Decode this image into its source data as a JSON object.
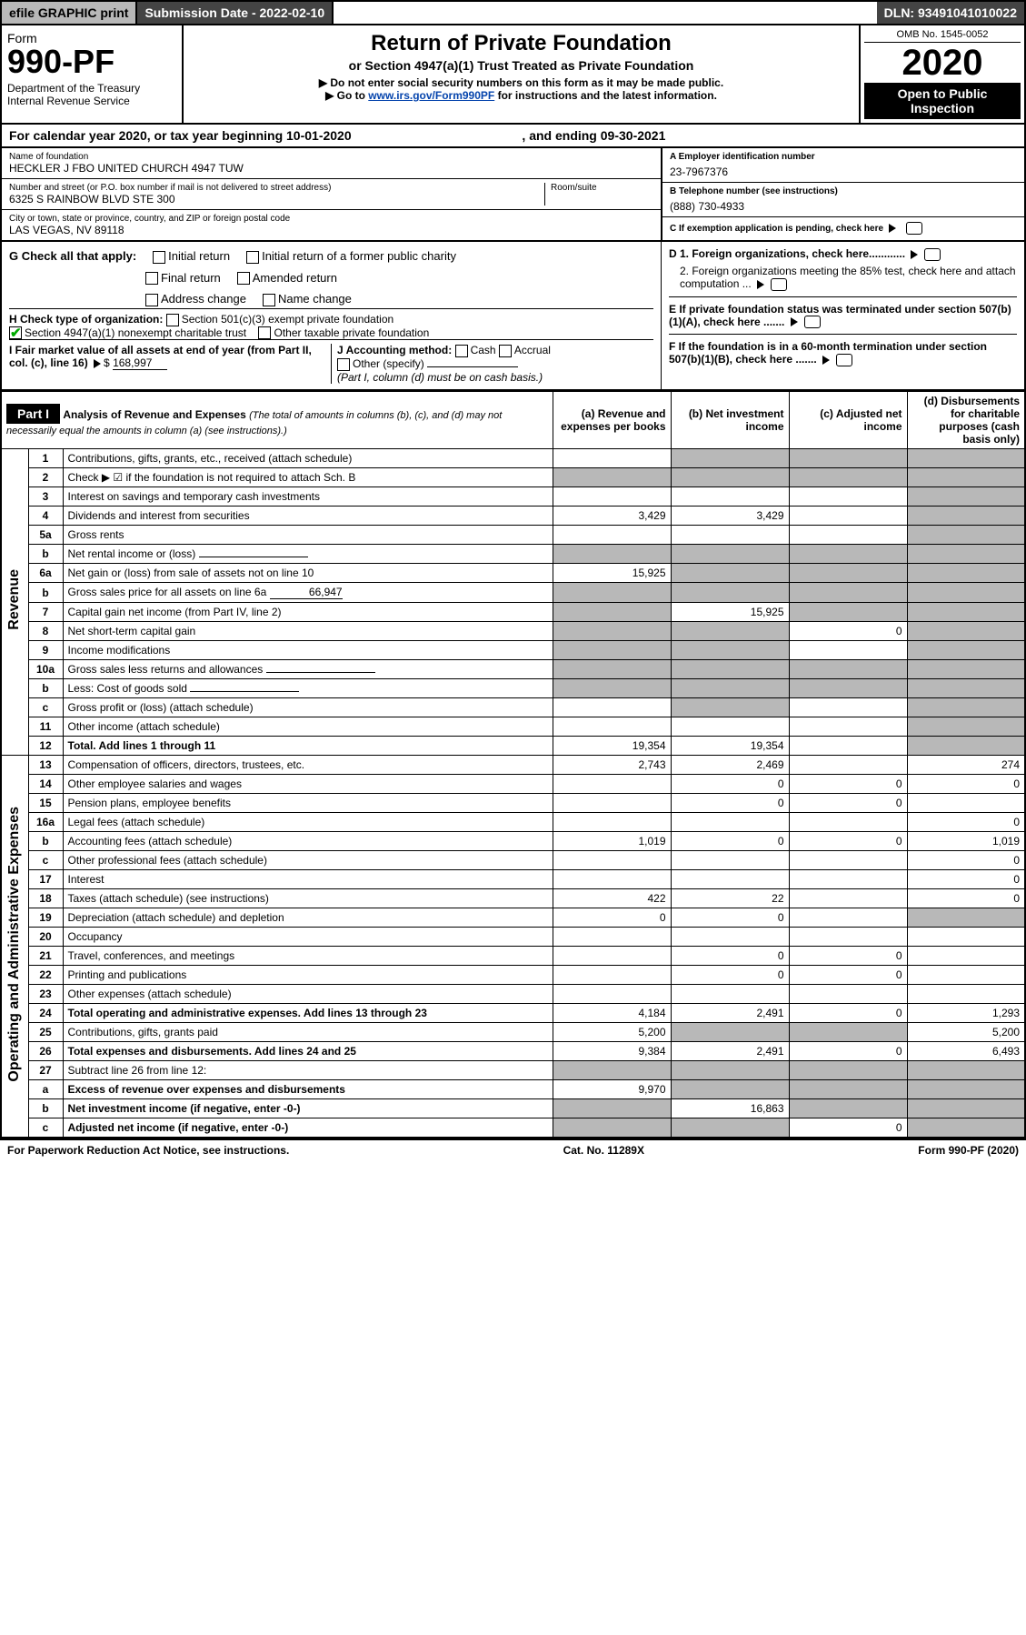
{
  "topbar": {
    "efile": "efile GRAPHIC print",
    "subdate_label": "Submission Date - ",
    "subdate_val": "2022-02-10",
    "dln_label": "DLN: ",
    "dln_val": "93491041010022"
  },
  "header": {
    "form_word": "Form",
    "form_no": "990-PF",
    "dept1": "Department of the Treasury",
    "dept2": "Internal Revenue Service",
    "title": "Return of Private Foundation",
    "subtitle": "or Section 4947(a)(1) Trust Treated as Private Foundation",
    "note1": "▶ Do not enter social security numbers on this form as it may be made public.",
    "note2_pre": "▶ Go to ",
    "note2_link": "www.irs.gov/Form990PF",
    "note2_post": " for instructions and the latest information.",
    "omb": "OMB No. 1545-0052",
    "year": "2020",
    "open": "Open to Public Inspection"
  },
  "cal": {
    "text_pre": "For calendar year 2020, or tax year beginning ",
    "begin": "10-01-2020",
    "text_mid": " , and ending ",
    "end": "09-30-2021"
  },
  "info": {
    "name_lbl": "Name of foundation",
    "name_val": "HECKLER J FBO UNITED CHURCH 4947 TUW",
    "addr_lbl": "Number and street (or P.O. box number if mail is not delivered to street address)",
    "addr_val": "6325 S RAINBOW BLVD STE 300",
    "room_lbl": "Room/suite",
    "city_lbl": "City or town, state or province, country, and ZIP or foreign postal code",
    "city_val": "LAS VEGAS, NV  89118",
    "a_lbl": "A Employer identification number",
    "a_val": "23-7967376",
    "b_lbl": "B Telephone number (see instructions)",
    "b_val": "(888) 730-4933",
    "c_lbl": "C If exemption application is pending, check here",
    "d1_lbl": "D 1. Foreign organizations, check here............",
    "d2_lbl": "2. Foreign organizations meeting the 85% test, check here and attach computation ...",
    "e_lbl": "E  If private foundation status was terminated under section 507(b)(1)(A), check here .......",
    "f_lbl": "F  If the foundation is in a 60-month termination under section 507(b)(1)(B), check here ......."
  },
  "g": {
    "label": "G Check all that apply:",
    "opts": [
      "Initial return",
      "Final return",
      "Address change",
      "Initial return of a former public charity",
      "Amended return",
      "Name change"
    ]
  },
  "h": {
    "label": "H Check type of organization:",
    "opt1": "Section 501(c)(3) exempt private foundation",
    "opt2": "Section 4947(a)(1) nonexempt charitable trust",
    "opt3": "Other taxable private foundation"
  },
  "i": {
    "label": "I Fair market value of all assets at end of year (from Part II, col. (c), line 16)",
    "val": "168,997"
  },
  "j": {
    "label": "J Accounting method:",
    "cash": "Cash",
    "accrual": "Accrual",
    "other": "Other (specify)",
    "note": "(Part I, column (d) must be on cash basis.)"
  },
  "part1": {
    "hdr": "Part I",
    "title": "Analysis of Revenue and Expenses",
    "title_note": "(The total of amounts in columns (b), (c), and (d) may not necessarily equal the amounts in column (a) (see instructions).)",
    "col_a": "(a)  Revenue and expenses per books",
    "col_b": "(b)  Net investment income",
    "col_c": "(c)  Adjusted net income",
    "col_d": "(d)  Disbursements for charitable purposes (cash basis only)"
  },
  "side_labels": {
    "revenue": "Revenue",
    "expenses": "Operating and Administrative Expenses"
  },
  "lines": [
    {
      "no": "1",
      "text": "Contributions, gifts, grants, etc., received (attach schedule)",
      "a": "",
      "b": "",
      "c": "",
      "d": "",
      "shade": [
        "b",
        "c",
        "d"
      ]
    },
    {
      "no": "2",
      "text": "Check ▶ ☑ if the foundation is not required to attach Sch. B",
      "a": "",
      "b": "",
      "c": "",
      "d": "",
      "shade": [
        "a",
        "b",
        "c",
        "d"
      ]
    },
    {
      "no": "3",
      "text": "Interest on savings and temporary cash investments",
      "a": "",
      "b": "",
      "c": "",
      "d": "",
      "shade": [
        "d"
      ]
    },
    {
      "no": "4",
      "text": "Dividends and interest from securities",
      "a": "3,429",
      "b": "3,429",
      "c": "",
      "d": "",
      "shade": [
        "d"
      ]
    },
    {
      "no": "5a",
      "text": "Gross rents",
      "a": "",
      "b": "",
      "c": "",
      "d": "",
      "shade": [
        "d"
      ]
    },
    {
      "no": "b",
      "text": "Net rental income or (loss)",
      "a": "",
      "b": "",
      "c": "",
      "d": "",
      "shade": [
        "a",
        "b",
        "c",
        "d"
      ],
      "inline": true
    },
    {
      "no": "6a",
      "text": "Net gain or (loss) from sale of assets not on line 10",
      "a": "15,925",
      "b": "",
      "c": "",
      "d": "",
      "shade": [
        "b",
        "c",
        "d"
      ]
    },
    {
      "no": "b",
      "text": "Gross sales price for all assets on line 6a",
      "inline_val": "66,947",
      "a": "",
      "b": "",
      "c": "",
      "d": "",
      "shade": [
        "a",
        "b",
        "c",
        "d"
      ]
    },
    {
      "no": "7",
      "text": "Capital gain net income (from Part IV, line 2)",
      "a": "",
      "b": "15,925",
      "c": "",
      "d": "",
      "shade": [
        "a",
        "c",
        "d"
      ]
    },
    {
      "no": "8",
      "text": "Net short-term capital gain",
      "a": "",
      "b": "",
      "c": "0",
      "d": "",
      "shade": [
        "a",
        "b",
        "d"
      ]
    },
    {
      "no": "9",
      "text": "Income modifications",
      "a": "",
      "b": "",
      "c": "",
      "d": "",
      "shade": [
        "a",
        "b",
        "d"
      ]
    },
    {
      "no": "10a",
      "text": "Gross sales less returns and allowances",
      "a": "",
      "b": "",
      "c": "",
      "d": "",
      "shade": [
        "a",
        "b",
        "c",
        "d"
      ],
      "inline": true
    },
    {
      "no": "b",
      "text": "Less: Cost of goods sold",
      "a": "",
      "b": "",
      "c": "",
      "d": "",
      "shade": [
        "a",
        "b",
        "c",
        "d"
      ],
      "inline": true
    },
    {
      "no": "c",
      "text": "Gross profit or (loss) (attach schedule)",
      "a": "",
      "b": "",
      "c": "",
      "d": "",
      "shade": [
        "b",
        "d"
      ]
    },
    {
      "no": "11",
      "text": "Other income (attach schedule)",
      "a": "",
      "b": "",
      "c": "",
      "d": "",
      "shade": [
        "d"
      ]
    },
    {
      "no": "12",
      "text": "Total. Add lines 1 through 11",
      "a": "19,354",
      "b": "19,354",
      "c": "",
      "d": "",
      "shade": [
        "d"
      ],
      "bold": true
    },
    {
      "no": "13",
      "text": "Compensation of officers, directors, trustees, etc.",
      "a": "2,743",
      "b": "2,469",
      "c": "",
      "d": "274"
    },
    {
      "no": "14",
      "text": "Other employee salaries and wages",
      "a": "",
      "b": "0",
      "c": "0",
      "d": "0"
    },
    {
      "no": "15",
      "text": "Pension plans, employee benefits",
      "a": "",
      "b": "0",
      "c": "0",
      "d": ""
    },
    {
      "no": "16a",
      "text": "Legal fees (attach schedule)",
      "a": "",
      "b": "",
      "c": "",
      "d": "0"
    },
    {
      "no": "b",
      "text": "Accounting fees (attach schedule)",
      "a": "1,019",
      "b": "0",
      "c": "0",
      "d": "1,019"
    },
    {
      "no": "c",
      "text": "Other professional fees (attach schedule)",
      "a": "",
      "b": "",
      "c": "",
      "d": "0"
    },
    {
      "no": "17",
      "text": "Interest",
      "a": "",
      "b": "",
      "c": "",
      "d": "0"
    },
    {
      "no": "18",
      "text": "Taxes (attach schedule) (see instructions)",
      "a": "422",
      "b": "22",
      "c": "",
      "d": "0"
    },
    {
      "no": "19",
      "text": "Depreciation (attach schedule) and depletion",
      "a": "0",
      "b": "0",
      "c": "",
      "d": "",
      "shade": [
        "d"
      ]
    },
    {
      "no": "20",
      "text": "Occupancy",
      "a": "",
      "b": "",
      "c": "",
      "d": ""
    },
    {
      "no": "21",
      "text": "Travel, conferences, and meetings",
      "a": "",
      "b": "0",
      "c": "0",
      "d": ""
    },
    {
      "no": "22",
      "text": "Printing and publications",
      "a": "",
      "b": "0",
      "c": "0",
      "d": ""
    },
    {
      "no": "23",
      "text": "Other expenses (attach schedule)",
      "a": "",
      "b": "",
      "c": "",
      "d": ""
    },
    {
      "no": "24",
      "text": "Total operating and administrative expenses. Add lines 13 through 23",
      "a": "4,184",
      "b": "2,491",
      "c": "0",
      "d": "1,293",
      "bold": true
    },
    {
      "no": "25",
      "text": "Contributions, gifts, grants paid",
      "a": "5,200",
      "b": "",
      "c": "",
      "d": "5,200",
      "shade": [
        "b",
        "c"
      ]
    },
    {
      "no": "26",
      "text": "Total expenses and disbursements. Add lines 24 and 25",
      "a": "9,384",
      "b": "2,491",
      "c": "0",
      "d": "6,493",
      "bold": true
    },
    {
      "no": "27",
      "text": "Subtract line 26 from line 12:",
      "a": "",
      "b": "",
      "c": "",
      "d": "",
      "shade": [
        "a",
        "b",
        "c",
        "d"
      ]
    },
    {
      "no": "a",
      "text": "Excess of revenue over expenses and disbursements",
      "a": "9,970",
      "b": "",
      "c": "",
      "d": "",
      "shade": [
        "b",
        "c",
        "d"
      ],
      "bold": true
    },
    {
      "no": "b",
      "text": "Net investment income (if negative, enter -0-)",
      "a": "",
      "b": "16,863",
      "c": "",
      "d": "",
      "shade": [
        "a",
        "c",
        "d"
      ],
      "bold": true
    },
    {
      "no": "c",
      "text": "Adjusted net income (if negative, enter -0-)",
      "a": "",
      "b": "",
      "c": "0",
      "d": "",
      "shade": [
        "a",
        "b",
        "d"
      ],
      "bold": true
    }
  ],
  "footer": {
    "left": "For Paperwork Reduction Act Notice, see instructions.",
    "mid": "Cat. No. 11289X",
    "right": "Form 990-PF (2020)"
  },
  "colors": {
    "shade": "#b8b8b8",
    "dark": "#444444",
    "link": "#0645ad",
    "check": "#00aa00"
  }
}
